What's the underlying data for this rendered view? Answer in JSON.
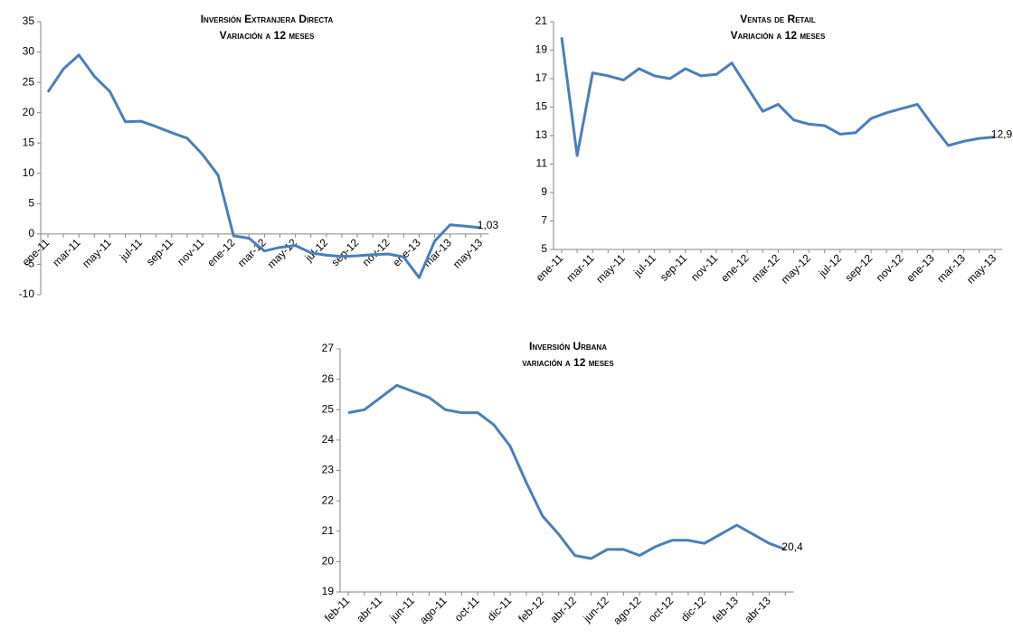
{
  "chart_data": [
    {
      "type": "line",
      "title": "Inversión Extranjera Directa",
      "subtitle": "Variación a 12 meses",
      "color": "#4a7ebb",
      "categories": [
        "ene-11",
        null,
        "mar-11",
        null,
        "may-11",
        null,
        "jul-11",
        null,
        "sep-11",
        null,
        "nov-11",
        null,
        "ene-12",
        null,
        "mar-12",
        null,
        "may-12",
        null,
        "jul-12",
        null,
        "sep-12",
        null,
        "nov-12",
        null,
        "ene-13",
        null,
        "mar-13",
        null,
        "may-13"
      ],
      "values": [
        23.4,
        27.2,
        29.5,
        26,
        23.5,
        18.5,
        18.6,
        17.7,
        16.7,
        15.8,
        13.1,
        9.7,
        -0.3,
        -0.7,
        -2.8,
        -2.2,
        -1.9,
        -3.1,
        -3.5,
        -3.7,
        -3.6,
        -3.4,
        -3.3,
        -3.8,
        -7.2,
        -1.2,
        1.5,
        1.3,
        1.03
      ],
      "value_labels": [
        null,
        null,
        null,
        null,
        null,
        null,
        null,
        null,
        null,
        null,
        null,
        null,
        null,
        null,
        null,
        null,
        null,
        null,
        null,
        null,
        null,
        null,
        null,
        null,
        null,
        null,
        null,
        null,
        "1,03"
      ],
      "ylim": [
        -10,
        35
      ],
      "yticks": [
        -10,
        -5,
        0,
        5,
        10,
        15,
        20,
        25,
        30,
        35
      ],
      "grid": false
    },
    {
      "type": "line",
      "title": "Ventas de Retail",
      "subtitle": "Variación a 12 meses",
      "color": "#4a7ebb",
      "categories": [
        "ene-11",
        null,
        "mar-11",
        null,
        "may-11",
        null,
        "jul-11",
        null,
        "sep-11",
        null,
        "nov-11",
        null,
        "ene-12",
        null,
        "mar-12",
        null,
        "may-12",
        null,
        "jul-12",
        null,
        "sep-12",
        null,
        "nov-12",
        null,
        "ene-13",
        null,
        "mar-13",
        null,
        "may-13"
      ],
      "values": [
        19.9,
        11.6,
        17.4,
        17.2,
        16.9,
        17.7,
        17.2,
        17.0,
        17.7,
        17.2,
        17.3,
        18.1,
        16.4,
        14.7,
        15.2,
        14.1,
        13.8,
        13.7,
        13.1,
        13.2,
        14.2,
        14.6,
        14.9,
        15.2,
        13.7,
        12.3,
        12.6,
        12.8,
        12.9
      ],
      "value_labels": [
        null,
        null,
        null,
        null,
        null,
        null,
        null,
        null,
        null,
        null,
        null,
        null,
        null,
        null,
        null,
        null,
        null,
        null,
        null,
        null,
        null,
        null,
        null,
        null,
        null,
        null,
        null,
        null,
        "12,9"
      ],
      "ylim": [
        5,
        21
      ],
      "yticks": [
        5,
        7,
        9,
        11,
        13,
        15,
        17,
        19,
        21
      ],
      "grid": false
    },
    {
      "type": "line",
      "title": "Inversión Urbana",
      "subtitle": "variación a 12 meses",
      "color": "#4a7ebb",
      "categories": [
        "feb-11",
        null,
        "abr-11",
        null,
        "jun-11",
        null,
        "ago-11",
        null,
        "oct-11",
        null,
        "dic-11",
        null,
        "feb-12",
        null,
        "abr-12",
        null,
        "jun-12",
        null,
        "ago-12",
        null,
        "oct-12",
        null,
        "dic-12",
        null,
        "feb-13",
        null,
        "abr-13",
        null
      ],
      "values": [
        24.9,
        25.0,
        25.4,
        25.8,
        25.6,
        25.4,
        25.0,
        24.9,
        24.9,
        24.5,
        23.8,
        22.6,
        21.5,
        20.9,
        20.2,
        20.1,
        20.4,
        20.4,
        20.2,
        20.5,
        20.7,
        20.7,
        20.6,
        20.9,
        21.2,
        20.9,
        20.6,
        20.4
      ],
      "value_labels": [
        null,
        null,
        null,
        null,
        null,
        null,
        null,
        null,
        null,
        null,
        null,
        null,
        null,
        null,
        null,
        null,
        null,
        null,
        null,
        null,
        null,
        null,
        null,
        null,
        null,
        null,
        null,
        "20,4"
      ],
      "ylim": [
        19,
        27
      ],
      "yticks": [
        19,
        20,
        21,
        22,
        23,
        24,
        25,
        26,
        27
      ],
      "grid": false
    }
  ]
}
